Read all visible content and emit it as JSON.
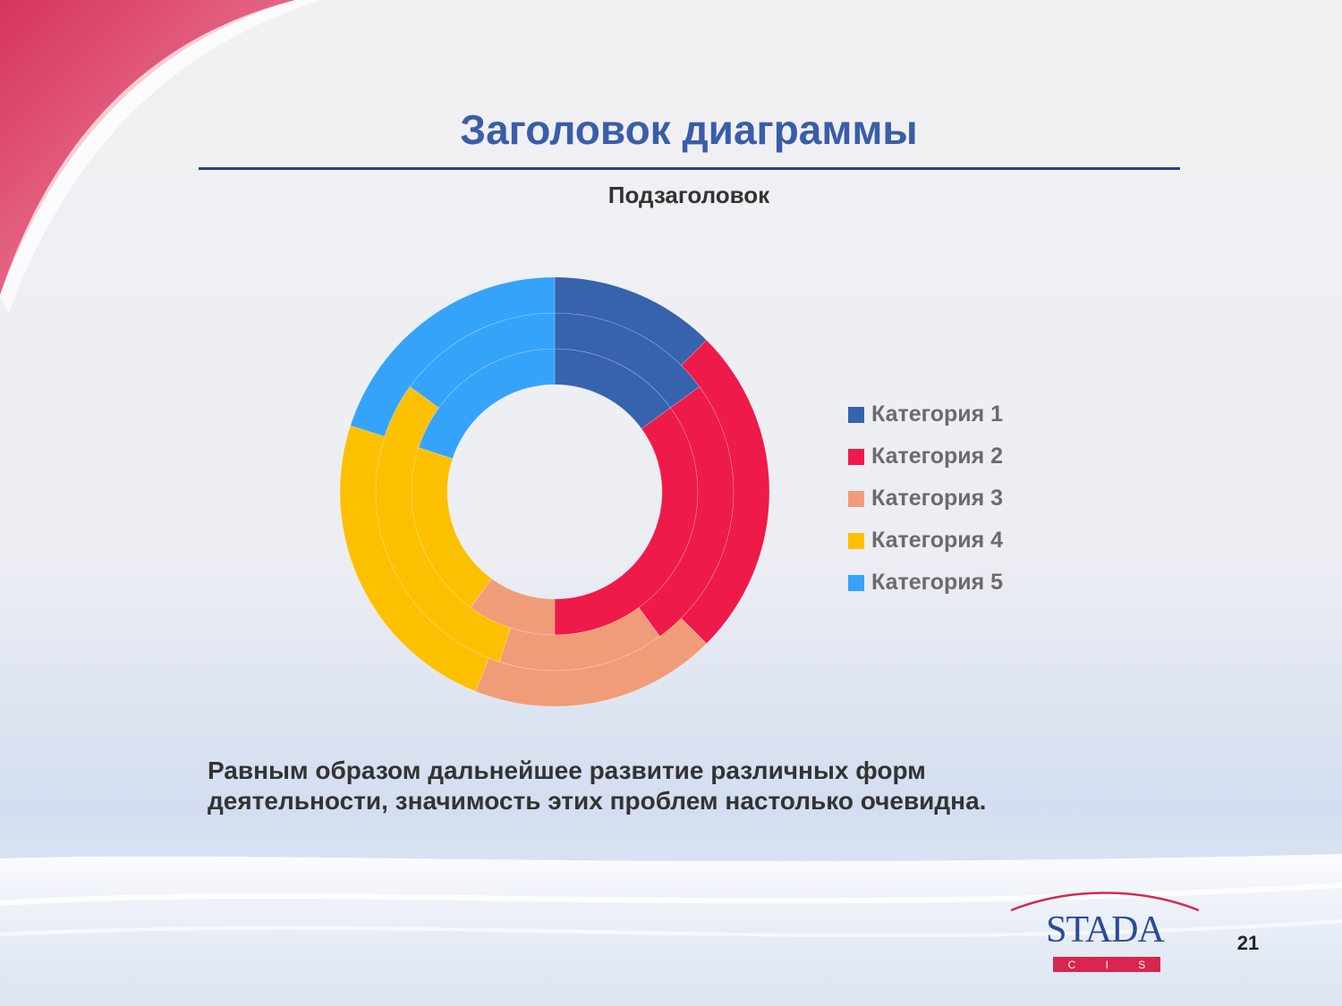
{
  "slide": {
    "title": "Заголовок диаграммы",
    "body_text": "Равным образом дальнейшее развитие различных форм деятельности, значимость этих проблем настолько очевидна.",
    "page_number": "21"
  },
  "logo": {
    "word": "STADA",
    "sub_letters": [
      "C",
      "I",
      "S"
    ]
  },
  "colors": {
    "title": "#3a5da8",
    "accent_red": "#d9264f",
    "logo_blue": "#2a4a98"
  },
  "chart_data": {
    "type": "doughnut",
    "title": "Подзаголовок",
    "categories": [
      "Категория 1",
      "Категория 2",
      "Категория 3",
      "Категория 4",
      "Категория 5"
    ],
    "colors": [
      "#3762ad",
      "#ee1a4a",
      "#f09c78",
      "#fdc000",
      "#36a3fb"
    ],
    "series": [
      {
        "values": [
          15,
          35,
          10,
          20,
          20
        ]
      },
      {
        "values": [
          15,
          25,
          15,
          30,
          15
        ]
      },
      {
        "values": [
          12.5,
          25,
          18.5,
          24,
          20
        ]
      }
    ],
    "rings_order": "inner-to-outer",
    "legend_position": "right"
  }
}
